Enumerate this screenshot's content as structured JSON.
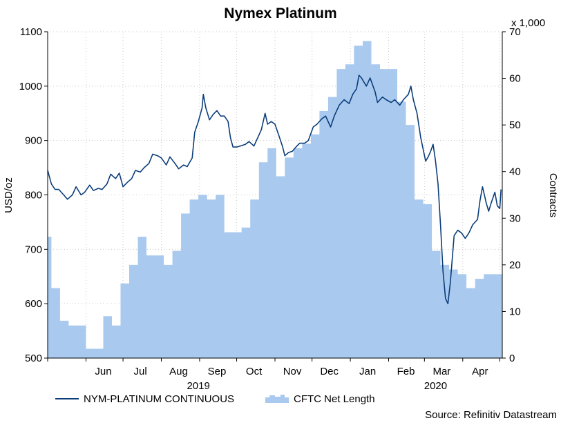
{
  "chart_data": {
    "type": "line",
    "title": "Nymex Platinum",
    "y_left_label": "USD/oz",
    "y_right_label": "Contracts",
    "y_right_multiplier": "x 1,000",
    "y_left_ticks": [
      500,
      600,
      700,
      800,
      900,
      1000,
      1100
    ],
    "y_right_ticks": [
      0,
      10,
      20,
      30,
      40,
      50,
      60,
      70
    ],
    "ylim_left": [
      500,
      1100
    ],
    "ylim_right": [
      0,
      70
    ],
    "x_range": [
      "2019-05-01",
      "2020-05-03"
    ],
    "month_labels": [
      {
        "label": "Jun",
        "date": "2019-06-15"
      },
      {
        "label": "Jul",
        "date": "2019-07-15"
      },
      {
        "label": "Aug",
        "date": "2019-08-15"
      },
      {
        "label": "Sep",
        "date": "2019-09-15"
      },
      {
        "label": "Oct",
        "date": "2019-10-15"
      },
      {
        "label": "Nov",
        "date": "2019-11-15"
      },
      {
        "label": "Dec",
        "date": "2019-12-15"
      },
      {
        "label": "Jan",
        "date": "2020-01-15"
      },
      {
        "label": "Feb",
        "date": "2020-02-15"
      },
      {
        "label": "Mar",
        "date": "2020-03-15"
      },
      {
        "label": "Apr",
        "date": "2020-04-15"
      }
    ],
    "year_labels": [
      {
        "label": "2019",
        "date": "2019-08-31"
      },
      {
        "label": "2020",
        "date": "2020-03-10"
      }
    ],
    "legend_placement": "bottom",
    "grid": true,
    "series": [
      {
        "name": "NYM-PLATINUM CONTINUOUS",
        "type": "line",
        "axis": "left",
        "color": "#0b3d7a",
        "points": [
          [
            "2019-05-01",
            845
          ],
          [
            "2019-05-04",
            820
          ],
          [
            "2019-05-07",
            810
          ],
          [
            "2019-05-10",
            810
          ],
          [
            "2019-05-14",
            800
          ],
          [
            "2019-05-17",
            792
          ],
          [
            "2019-05-21",
            800
          ],
          [
            "2019-05-24",
            815
          ],
          [
            "2019-05-28",
            800
          ],
          [
            "2019-05-31",
            805
          ],
          [
            "2019-06-04",
            818
          ],
          [
            "2019-06-07",
            808
          ],
          [
            "2019-06-11",
            812
          ],
          [
            "2019-06-14",
            810
          ],
          [
            "2019-06-18",
            820
          ],
          [
            "2019-06-21",
            838
          ],
          [
            "2019-06-25",
            830
          ],
          [
            "2019-06-28",
            840
          ],
          [
            "2019-07-01",
            815
          ],
          [
            "2019-07-04",
            822
          ],
          [
            "2019-07-08",
            830
          ],
          [
            "2019-07-11",
            845
          ],
          [
            "2019-07-15",
            842
          ],
          [
            "2019-07-18",
            850
          ],
          [
            "2019-07-22",
            858
          ],
          [
            "2019-07-25",
            875
          ],
          [
            "2019-07-29",
            872
          ],
          [
            "2019-08-01",
            868
          ],
          [
            "2019-08-05",
            855
          ],
          [
            "2019-08-08",
            870
          ],
          [
            "2019-08-12",
            858
          ],
          [
            "2019-08-15",
            848
          ],
          [
            "2019-08-19",
            855
          ],
          [
            "2019-08-22",
            852
          ],
          [
            "2019-08-26",
            868
          ],
          [
            "2019-08-28",
            915
          ],
          [
            "2019-08-31",
            935
          ],
          [
            "2019-09-03",
            960
          ],
          [
            "2019-09-04",
            985
          ],
          [
            "2019-09-06",
            960
          ],
          [
            "2019-09-09",
            938
          ],
          [
            "2019-09-12",
            948
          ],
          [
            "2019-09-15",
            955
          ],
          [
            "2019-09-18",
            945
          ],
          [
            "2019-09-21",
            945
          ],
          [
            "2019-09-24",
            935
          ],
          [
            "2019-09-26",
            905
          ],
          [
            "2019-09-28",
            888
          ],
          [
            "2019-10-01",
            888
          ],
          [
            "2019-10-04",
            890
          ],
          [
            "2019-10-08",
            893
          ],
          [
            "2019-10-11",
            898
          ],
          [
            "2019-10-15",
            890
          ],
          [
            "2019-10-18",
            905
          ],
          [
            "2019-10-21",
            920
          ],
          [
            "2019-10-24",
            950
          ],
          [
            "2019-10-26",
            930
          ],
          [
            "2019-10-29",
            935
          ],
          [
            "2019-11-01",
            930
          ],
          [
            "2019-11-04",
            910
          ],
          [
            "2019-11-07",
            890
          ],
          [
            "2019-11-09",
            872
          ],
          [
            "2019-11-12",
            878
          ],
          [
            "2019-11-15",
            880
          ],
          [
            "2019-11-18",
            888
          ],
          [
            "2019-11-21",
            895
          ],
          [
            "2019-11-25",
            895
          ],
          [
            "2019-11-28",
            900
          ],
          [
            "2019-12-02",
            925
          ],
          [
            "2019-12-05",
            930
          ],
          [
            "2019-12-09",
            940
          ],
          [
            "2019-12-12",
            945
          ],
          [
            "2019-12-16",
            925
          ],
          [
            "2019-12-19",
            945
          ],
          [
            "2019-12-23",
            965
          ],
          [
            "2019-12-27",
            975
          ],
          [
            "2019-12-31",
            968
          ],
          [
            "2020-01-03",
            985
          ],
          [
            "2020-01-06",
            995
          ],
          [
            "2020-01-08",
            1020
          ],
          [
            "2020-01-10",
            1015
          ],
          [
            "2020-01-14",
            1000
          ],
          [
            "2020-01-17",
            1015
          ],
          [
            "2020-01-21",
            990
          ],
          [
            "2020-01-23",
            970
          ],
          [
            "2020-01-27",
            980
          ],
          [
            "2020-01-30",
            975
          ],
          [
            "2020-02-03",
            970
          ],
          [
            "2020-02-06",
            975
          ],
          [
            "2020-02-10",
            965
          ],
          [
            "2020-02-13",
            975
          ],
          [
            "2020-02-17",
            985
          ],
          [
            "2020-02-19",
            1000
          ],
          [
            "2020-02-21",
            975
          ],
          [
            "2020-02-24",
            950
          ],
          [
            "2020-02-27",
            905
          ],
          [
            "2020-03-02",
            862
          ],
          [
            "2020-03-04",
            870
          ],
          [
            "2020-03-06",
            880
          ],
          [
            "2020-03-08",
            893
          ],
          [
            "2020-03-10",
            862
          ],
          [
            "2020-03-12",
            820
          ],
          [
            "2020-03-14",
            745
          ],
          [
            "2020-03-16",
            660
          ],
          [
            "2020-03-18",
            610
          ],
          [
            "2020-03-20",
            600
          ],
          [
            "2020-03-22",
            640
          ],
          [
            "2020-03-25",
            725
          ],
          [
            "2020-03-28",
            735
          ],
          [
            "2020-03-31",
            730
          ],
          [
            "2020-04-03",
            720
          ],
          [
            "2020-04-06",
            730
          ],
          [
            "2020-04-09",
            745
          ],
          [
            "2020-04-13",
            755
          ],
          [
            "2020-04-15",
            790
          ],
          [
            "2020-04-17",
            815
          ],
          [
            "2020-04-20",
            785
          ],
          [
            "2020-04-22",
            770
          ],
          [
            "2020-04-24",
            785
          ],
          [
            "2020-04-27",
            805
          ],
          [
            "2020-04-29",
            780
          ],
          [
            "2020-05-01",
            775
          ],
          [
            "2020-05-02",
            810
          ]
        ]
      },
      {
        "name": "CFTC Net Length",
        "type": "area",
        "axis": "right",
        "color": "#a9c9ee",
        "values_x1000": [
          [
            "2019-05-01",
            26
          ],
          [
            "2019-05-04",
            15
          ],
          [
            "2019-05-11",
            8
          ],
          [
            "2019-05-18",
            7
          ],
          [
            "2019-05-25",
            7
          ],
          [
            "2019-06-01",
            2
          ],
          [
            "2019-06-08",
            2
          ],
          [
            "2019-06-15",
            9
          ],
          [
            "2019-06-22",
            7
          ],
          [
            "2019-06-29",
            16
          ],
          [
            "2019-07-06",
            20
          ],
          [
            "2019-07-13",
            26
          ],
          [
            "2019-07-20",
            22
          ],
          [
            "2019-07-27",
            22
          ],
          [
            "2019-08-03",
            20
          ],
          [
            "2019-08-10",
            23
          ],
          [
            "2019-08-17",
            31
          ],
          [
            "2019-08-24",
            34
          ],
          [
            "2019-08-31",
            35
          ],
          [
            "2019-09-07",
            34
          ],
          [
            "2019-09-14",
            35
          ],
          [
            "2019-09-21",
            27
          ],
          [
            "2019-09-28",
            27
          ],
          [
            "2019-10-05",
            28
          ],
          [
            "2019-10-12",
            34
          ],
          [
            "2019-10-19",
            42
          ],
          [
            "2019-10-26",
            45
          ],
          [
            "2019-11-02",
            39
          ],
          [
            "2019-11-09",
            43
          ],
          [
            "2019-11-16",
            45
          ],
          [
            "2019-11-23",
            46
          ],
          [
            "2019-11-30",
            48
          ],
          [
            "2019-12-07",
            53
          ],
          [
            "2019-12-14",
            56
          ],
          [
            "2019-12-21",
            62
          ],
          [
            "2019-12-28",
            63
          ],
          [
            "2020-01-04",
            67
          ],
          [
            "2020-01-11",
            68
          ],
          [
            "2020-01-18",
            63
          ],
          [
            "2020-01-25",
            62
          ],
          [
            "2020-02-01",
            62
          ],
          [
            "2020-02-08",
            55
          ],
          [
            "2020-02-15",
            50
          ],
          [
            "2020-02-22",
            34
          ],
          [
            "2020-02-29",
            33
          ],
          [
            "2020-03-07",
            23
          ],
          [
            "2020-03-14",
            20
          ],
          [
            "2020-03-21",
            19
          ],
          [
            "2020-03-28",
            18
          ],
          [
            "2020-04-04",
            15
          ],
          [
            "2020-04-11",
            17
          ],
          [
            "2020-04-18",
            18
          ],
          [
            "2020-04-25",
            18
          ],
          [
            "2020-05-02",
            18
          ]
        ]
      }
    ]
  },
  "source": "Source: Refinitiv Datastream"
}
